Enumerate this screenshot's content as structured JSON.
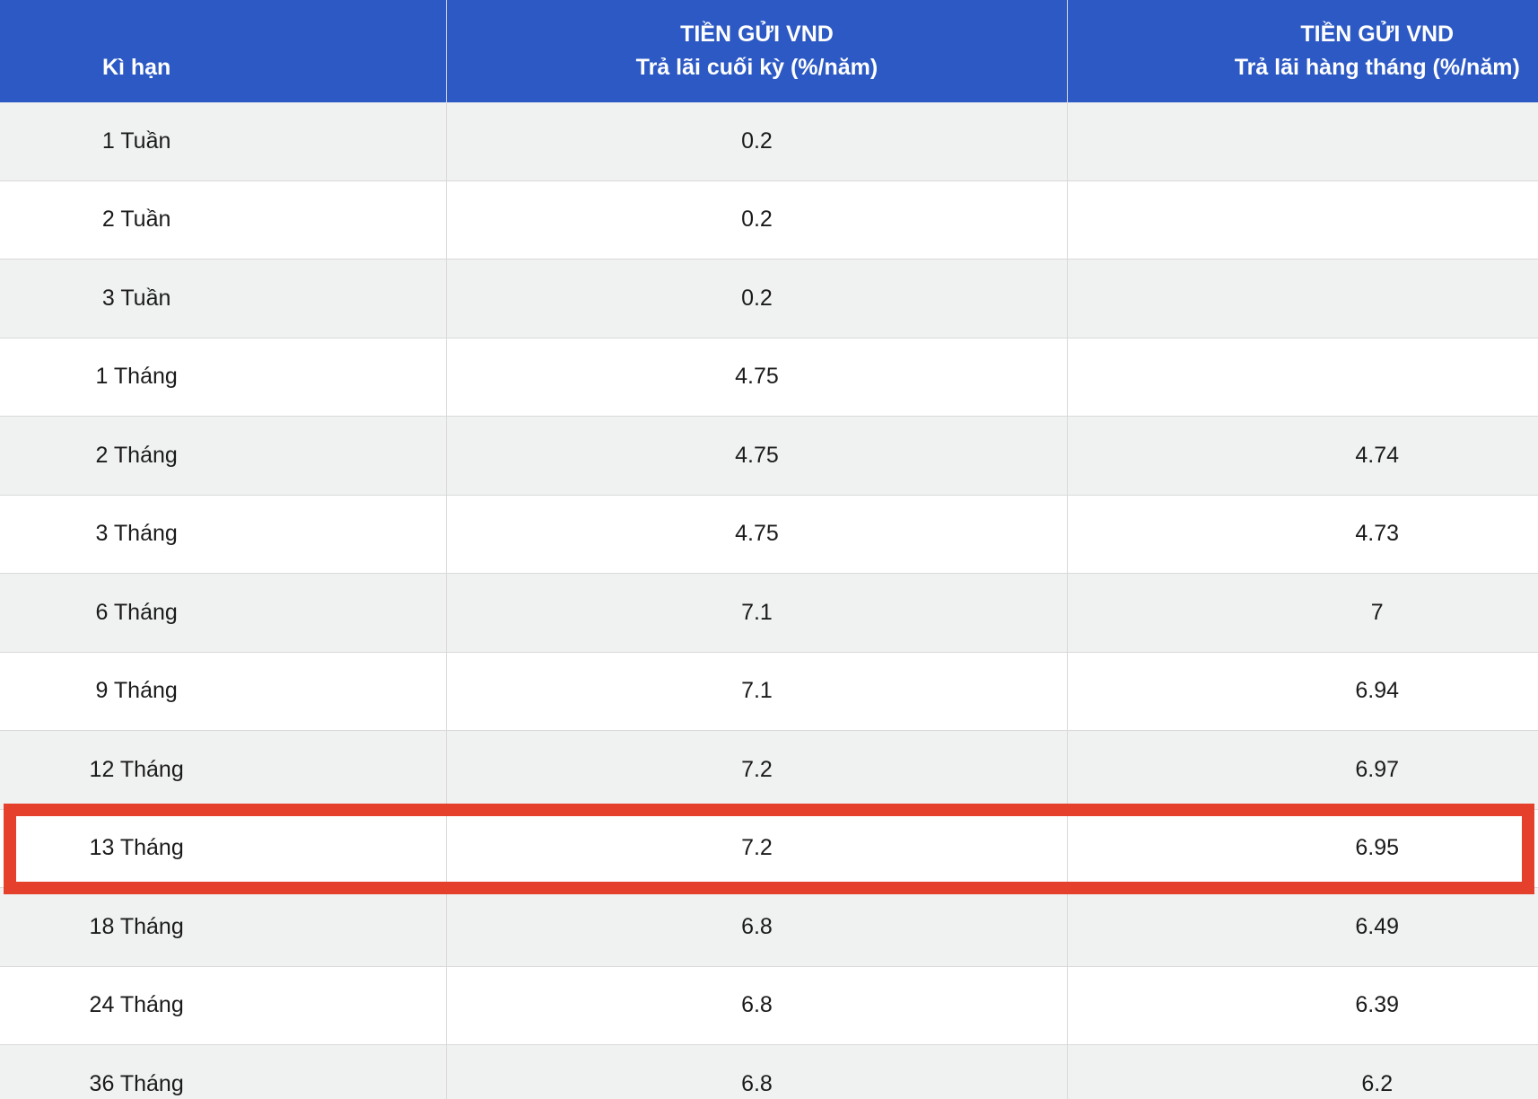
{
  "colors": {
    "header_bg": "#2c59c4",
    "header_text": "#ffffff",
    "body_text": "#1b1b1b",
    "row_bg": "#ffffff",
    "row_alt_bg": "#f0f1f1",
    "divider": "#d9d9d9",
    "highlight_border": "#e5402c"
  },
  "table": {
    "columns": [
      {
        "line1": "",
        "line2": "Kì hạn"
      },
      {
        "line1": "TIỀN GỬI VND",
        "line2": "Trả lãi cuối kỳ (%/năm)"
      },
      {
        "line1": "TIỀN GỬI VND",
        "line2": "Trả lãi hàng tháng (%/năm)"
      }
    ],
    "rows": [
      {
        "term": "1 Tuần",
        "end_of_term": "0.2",
        "monthly": ""
      },
      {
        "term": "2 Tuần",
        "end_of_term": "0.2",
        "monthly": ""
      },
      {
        "term": "3 Tuần",
        "end_of_term": "0.2",
        "monthly": ""
      },
      {
        "term": "1 Tháng",
        "end_of_term": "4.75",
        "monthly": ""
      },
      {
        "term": "2 Tháng",
        "end_of_term": "4.75",
        "monthly": "4.74"
      },
      {
        "term": "3 Tháng",
        "end_of_term": "4.75",
        "monthly": "4.73"
      },
      {
        "term": "6 Tháng",
        "end_of_term": "7.1",
        "monthly": "7"
      },
      {
        "term": "9 Tháng",
        "end_of_term": "7.1",
        "monthly": "6.94"
      },
      {
        "term": "12 Tháng",
        "end_of_term": "7.2",
        "monthly": "6.97"
      },
      {
        "term": "13 Tháng",
        "end_of_term": "7.2",
        "monthly": "6.95"
      },
      {
        "term": "18 Tháng",
        "end_of_term": "6.8",
        "monthly": "6.49"
      },
      {
        "term": "24 Tháng",
        "end_of_term": "6.8",
        "monthly": "6.39"
      },
      {
        "term": "36 Tháng",
        "end_of_term": "6.8",
        "monthly": "6.2"
      }
    ]
  },
  "highlight": {
    "term": "13 Tháng"
  }
}
